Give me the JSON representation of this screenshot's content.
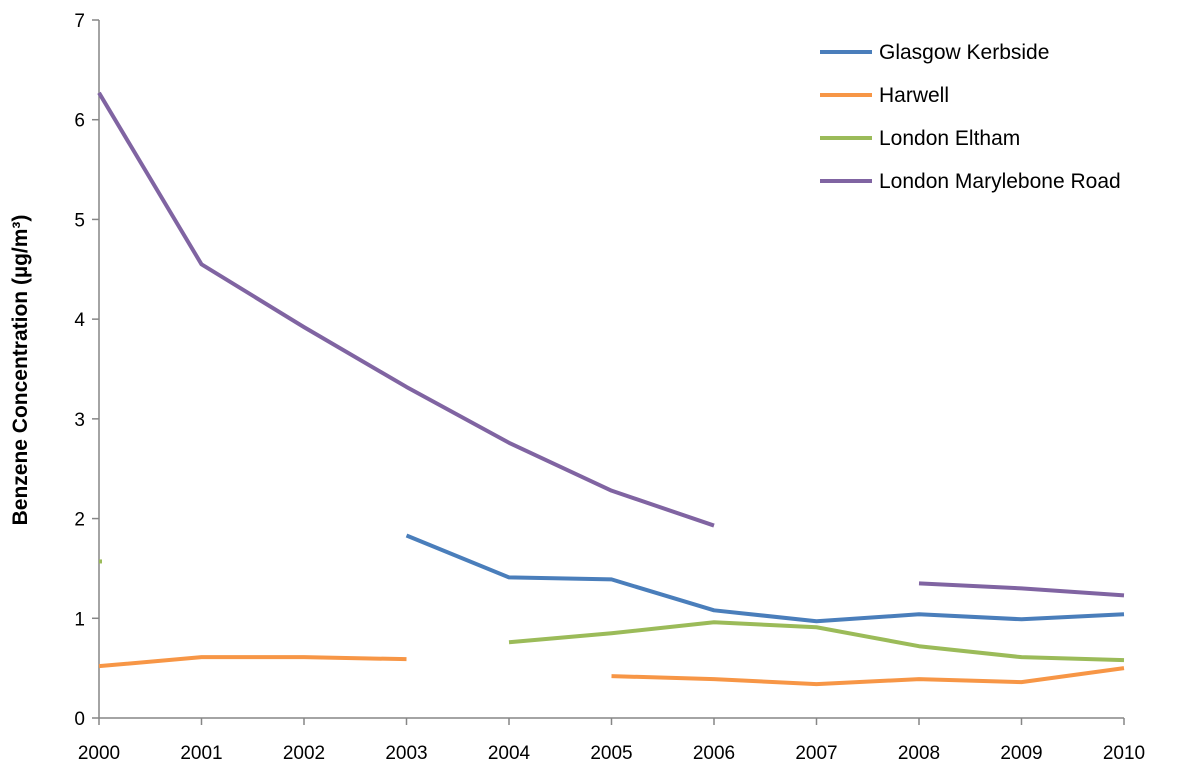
{
  "chart_data": {
    "type": "line",
    "title": "",
    "xlabel": "",
    "ylabel": "Benzene Concentration (µg/m³)",
    "x": [
      "2000",
      "2001",
      "2002",
      "2003",
      "2004",
      "2005",
      "2006",
      "2007",
      "2008",
      "2009",
      "2010"
    ],
    "ylim": [
      0,
      7
    ],
    "yticks": [
      "0",
      "1",
      "2",
      "3",
      "4",
      "5",
      "6",
      "7"
    ],
    "grid": false,
    "legend_position": "top-right",
    "series": [
      {
        "name": "Glasgow Kerbside",
        "color": "#4a7ebb",
        "values": [
          null,
          null,
          null,
          1.83,
          1.41,
          1.39,
          1.08,
          0.97,
          1.04,
          0.99,
          1.04
        ]
      },
      {
        "name": "Harwell",
        "color": "#f79646",
        "values": [
          0.52,
          0.61,
          0.61,
          0.59,
          null,
          0.42,
          0.39,
          0.34,
          0.39,
          0.36,
          0.5
        ]
      },
      {
        "name": "London Eltham",
        "color": "#9bbb59",
        "values": [
          1.57,
          null,
          null,
          null,
          0.76,
          0.85,
          0.96,
          0.91,
          0.72,
          0.61,
          0.58
        ]
      },
      {
        "name": "London Marylebone Road",
        "color": "#8064a2",
        "values": [
          6.27,
          4.55,
          3.92,
          3.32,
          2.76,
          2.28,
          1.93,
          null,
          1.35,
          1.3,
          1.23
        ]
      }
    ]
  }
}
